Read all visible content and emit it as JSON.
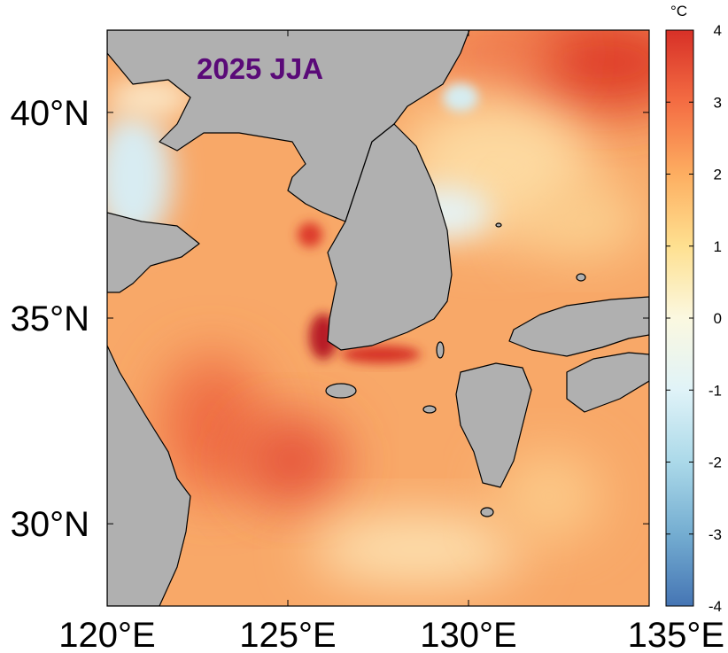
{
  "map": {
    "title": "2025 JJA",
    "lon_range": [
      120,
      135
    ],
    "lat_range": [
      28,
      42
    ],
    "lon_ticks": [
      {
        "value": 120,
        "label": "120°E"
      },
      {
        "value": 125,
        "label": "125°E"
      },
      {
        "value": 130,
        "label": "130°E"
      },
      {
        "value": 135,
        "label": "135°E"
      }
    ],
    "lat_ticks": [
      {
        "value": 30,
        "label": "30°N"
      },
      {
        "value": 35,
        "label": "35°N"
      },
      {
        "value": 40,
        "label": "40°N"
      }
    ],
    "land_color": "#b0b0b0",
    "coastline_color": "#000000"
  },
  "colorbar": {
    "unit": "°C",
    "range": [
      -4,
      4
    ],
    "ticks": [
      {
        "value": 4,
        "label": "4"
      },
      {
        "value": 3,
        "label": "3"
      },
      {
        "value": 2,
        "label": "2"
      },
      {
        "value": 1,
        "label": "1"
      },
      {
        "value": 0,
        "label": "0"
      },
      {
        "value": -1,
        "label": "-1"
      },
      {
        "value": -2,
        "label": "-2"
      },
      {
        "value": -3,
        "label": "-3"
      },
      {
        "value": -4,
        "label": "-4"
      }
    ],
    "colors": [
      "#4575b4",
      "#74add1",
      "#abd9e9",
      "#e0f3f8",
      "#fbf8e0",
      "#fee090",
      "#fdae61",
      "#f46d43",
      "#d73027"
    ]
  }
}
